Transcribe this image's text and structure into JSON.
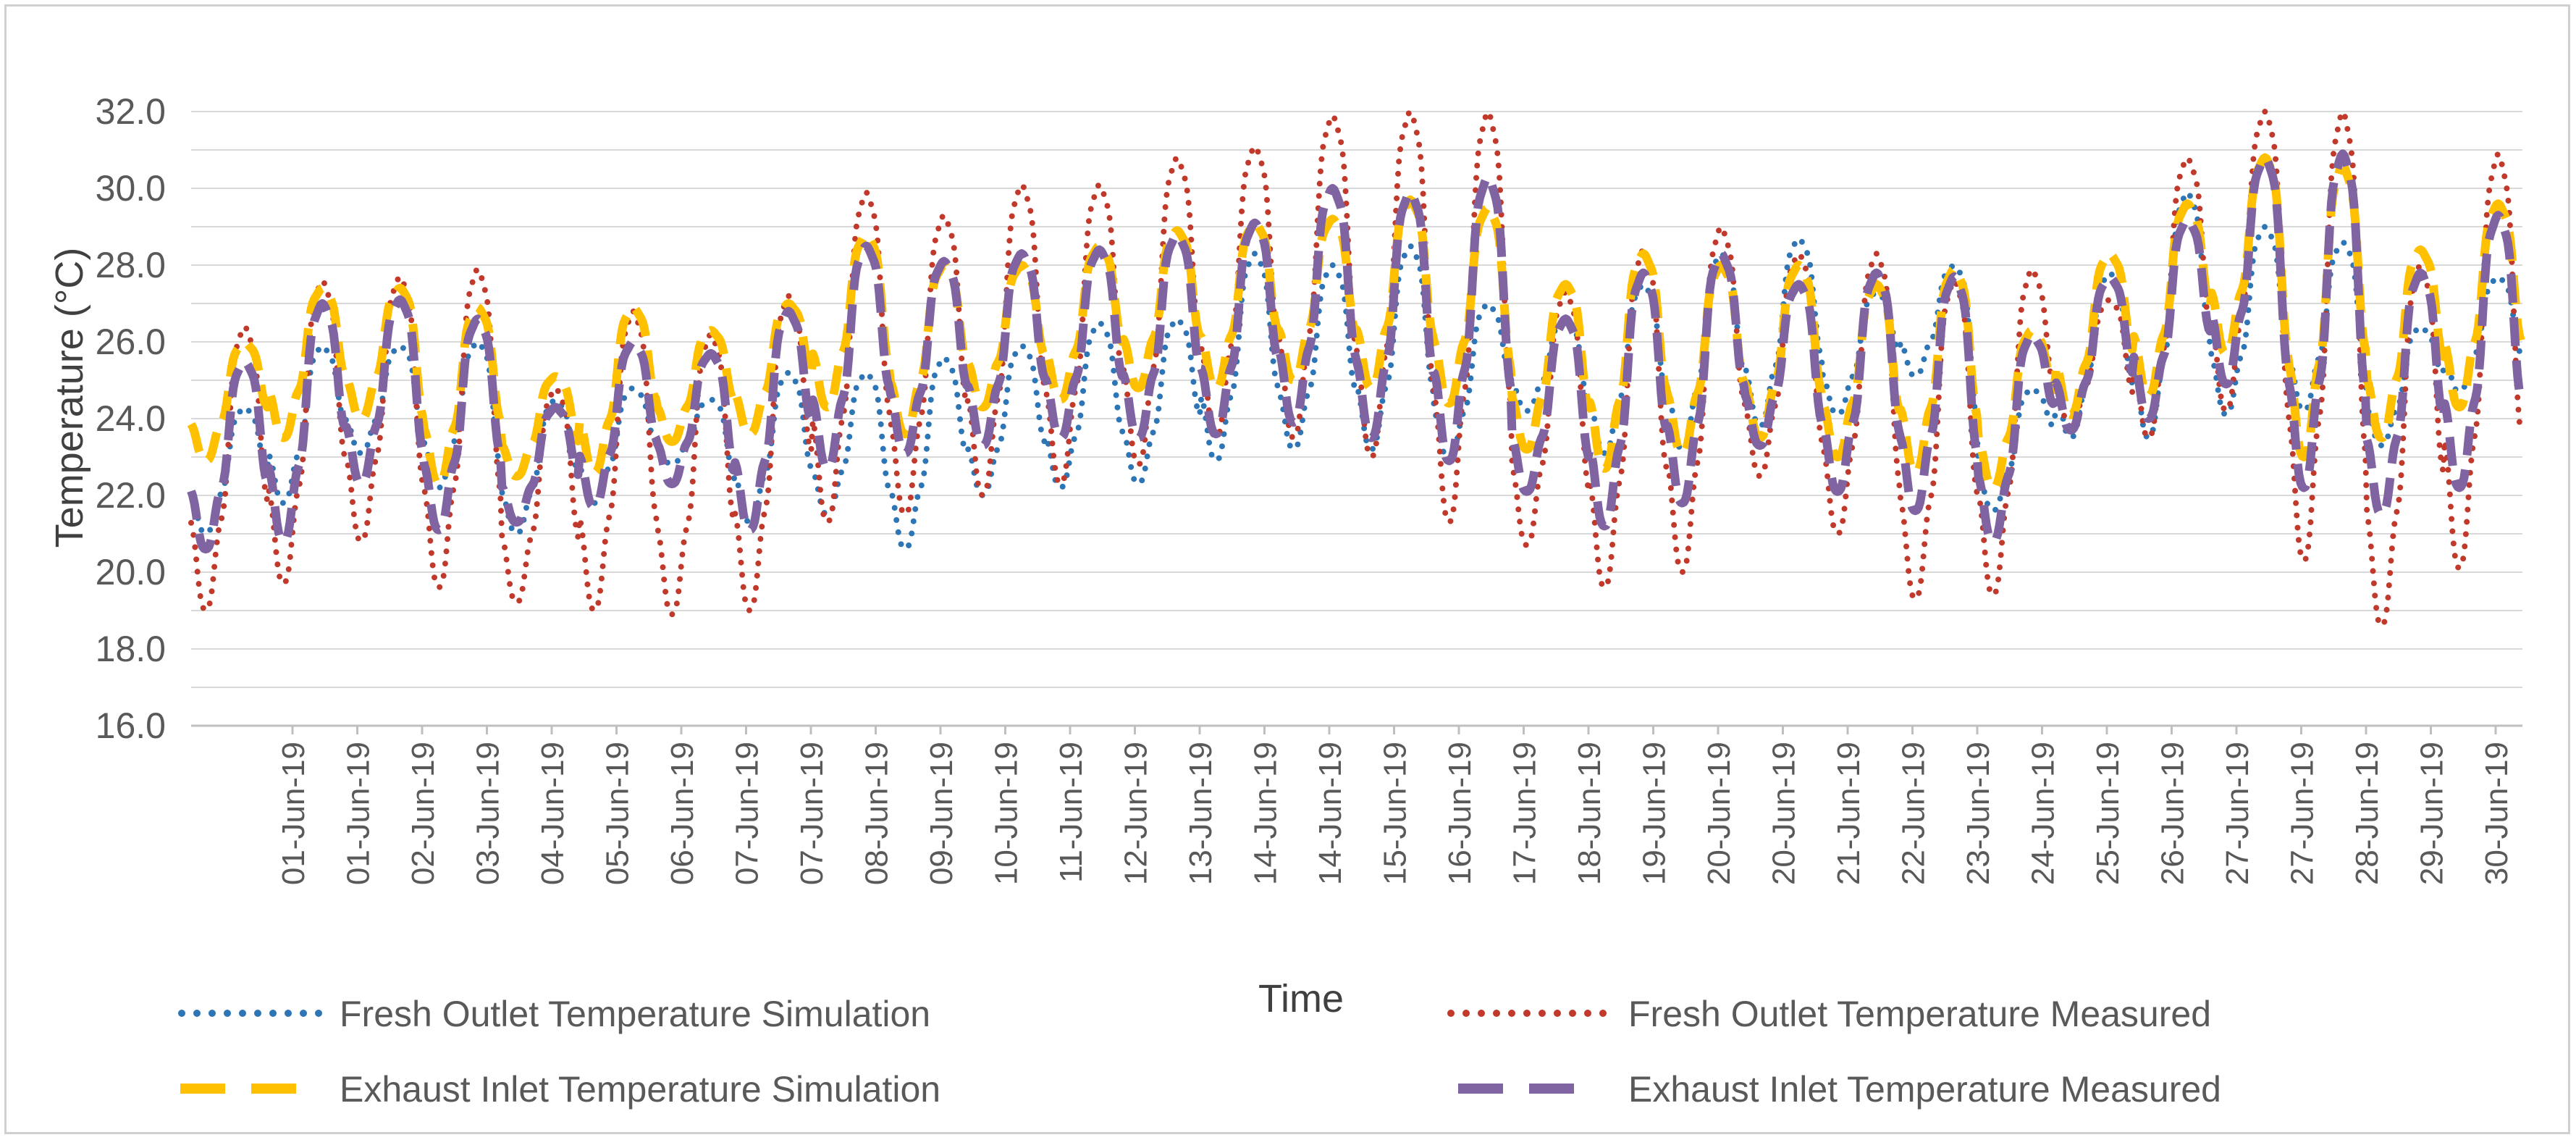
{
  "chart_data": {
    "type": "line",
    "title": "",
    "xlabel": "Time",
    "ylabel": "Temperature (°C)",
    "ylim": [
      16,
      32
    ],
    "yticks": [
      "16.0",
      "18.0",
      "20.0",
      "22.0",
      "24.0",
      "26.0",
      "28.0",
      "30.0",
      "32.0"
    ],
    "grid": true,
    "legend_position": "bottom",
    "x_tick_labels": [
      "01-Jun-19",
      "01-Jun-19",
      "02-Jun-19",
      "03-Jun-19",
      "04-Jun-19",
      "05-Jun-19",
      "06-Jun-19",
      "07-Jun-19",
      "07-Jun-19",
      "08-Jun-19",
      "09-Jun-19",
      "10-Jun-19",
      "11-Jun-19",
      "12-Jun-19",
      "13-Jun-19",
      "14-Jun-19",
      "14-Jun-19",
      "15-Jun-19",
      "16-Jun-19",
      "17-Jun-19",
      "18-Jun-19",
      "19-Jun-19",
      "20-Jun-19",
      "20-Jun-19",
      "21-Jun-19",
      "22-Jun-19",
      "23-Jun-19",
      "24-Jun-19",
      "25-Jun-19",
      "26-Jun-19",
      "27-Jun-19",
      "27-Jun-19",
      "28-Jun-19",
      "29-Jun-19",
      "30-Jun-19"
    ],
    "days": 30,
    "series": [
      {
        "name": "Fresh Outlet Temperature Simulation",
        "color": "#2e75b6",
        "style": "dotted",
        "daily_max": [
          24.3,
          25.9,
          25.9,
          26.0,
          24.5,
          24.8,
          24.5,
          25.2,
          25.2,
          25.6,
          25.9,
          26.5,
          26.6,
          28.3,
          28.0,
          28.5,
          27.0,
          26.6,
          27.5,
          28.3,
          28.7,
          27.3,
          28.0,
          24.8,
          27.8,
          29.9,
          29.0,
          28.6,
          26.4,
          27.7
        ],
        "daily_min": [
          21.0,
          21.8,
          23.1,
          22.2,
          21.0,
          21.8,
          22.8,
          21.3,
          21.5,
          20.6,
          22.0,
          22.2,
          22.3,
          22.9,
          23.2,
          23.2,
          22.9,
          24.2,
          23.1,
          23.2,
          23.8,
          24.1,
          25.1,
          21.6,
          23.5,
          23.5,
          24.1,
          24.2,
          23.3,
          24.7
        ]
      },
      {
        "name": "Fresh Outlet Temperature Measured",
        "color": "#c0392b",
        "style": "dotted",
        "daily_max": [
          26.4,
          27.6,
          27.7,
          27.9,
          24.8,
          26.8,
          26.2,
          27.2,
          29.9,
          29.3,
          30.1,
          30.1,
          30.8,
          31.1,
          31.9,
          32.0,
          32.0,
          27.3,
          28.4,
          29.0,
          28.3,
          28.3,
          27.6,
          27.9,
          27.1,
          30.8,
          32.0,
          32.0,
          28.0,
          30.9
        ],
        "daily_min": [
          19.0,
          19.7,
          20.8,
          19.6,
          19.2,
          19.0,
          18.9,
          19.0,
          21.3,
          21.5,
          22.0,
          22.3,
          22.8,
          23.5,
          23.5,
          23.0,
          21.3,
          20.7,
          19.6,
          20.0,
          22.5,
          21.0,
          19.3,
          19.4,
          23.8,
          23.5,
          24.2,
          20.3,
          18.6,
          20.1
        ]
      },
      {
        "name": "Exhaust Inlet Temperature Simulation",
        "color": "#ffc000",
        "style": "long-dash",
        "daily_max": [
          26.0,
          27.4,
          27.4,
          26.9,
          25.1,
          26.9,
          26.3,
          27.0,
          28.8,
          28.0,
          28.0,
          28.5,
          28.9,
          29.1,
          29.2,
          29.7,
          29.5,
          27.5,
          28.3,
          28.0,
          28.0,
          27.5,
          27.9,
          26.3,
          28.3,
          29.6,
          30.8,
          30.6,
          28.4,
          29.6
        ],
        "daily_min": [
          22.9,
          23.5,
          24.0,
          22.3,
          22.5,
          22.6,
          23.4,
          23.6,
          24.3,
          23.6,
          24.3,
          24.5,
          24.8,
          24.8,
          25.0,
          24.8,
          24.4,
          23.2,
          22.7,
          23.1,
          23.5,
          23.0,
          22.6,
          22.2,
          24.1,
          24.6,
          25.7,
          23.0,
          23.5,
          24.3
        ]
      },
      {
        "name": "Exhaust Inlet Temperature Measured",
        "color": "#8064a2",
        "style": "long-dash",
        "daily_max": [
          25.5,
          27.0,
          27.1,
          26.6,
          24.3,
          26.0,
          25.7,
          26.8,
          28.5,
          28.1,
          28.3,
          28.4,
          28.8,
          29.1,
          30.0,
          29.9,
          30.3,
          26.6,
          27.8,
          28.3,
          27.5,
          27.8,
          27.7,
          26.2,
          27.7,
          29.2,
          30.8,
          30.9,
          27.8,
          29.3
        ],
        "daily_min": [
          20.6,
          20.8,
          22.3,
          21.1,
          21.3,
          21.7,
          22.3,
          21.1,
          22.7,
          23.1,
          23.3,
          23.5,
          23.5,
          23.6,
          23.9,
          23.5,
          22.9,
          22.1,
          21.2,
          21.8,
          23.3,
          22.1,
          21.6,
          20.8,
          23.7,
          24.0,
          24.9,
          22.2,
          21.5,
          22.2
        ]
      }
    ]
  }
}
